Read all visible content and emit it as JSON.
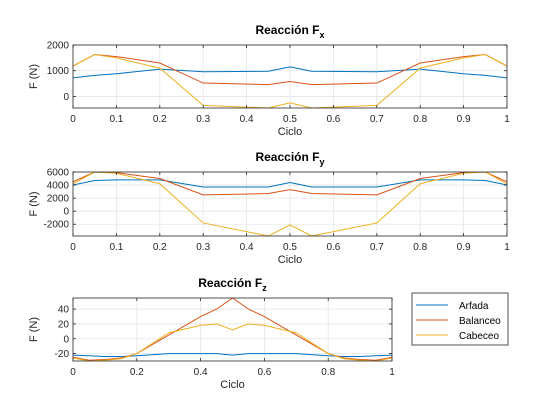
{
  "legend": {
    "entries": [
      "Arfada",
      "Balanceo",
      "Cabeceo"
    ]
  },
  "chart_data": [
    {
      "type": "line",
      "title": "Reacción F",
      "title_subscript": "x",
      "xlabel": "Ciclo",
      "ylabel": "F (N)",
      "xlim": [
        0,
        1
      ],
      "ylim": [
        -450,
        2000
      ],
      "xticks": [
        0,
        0.1,
        0.2,
        0.3,
        0.4,
        0.5,
        0.6,
        0.7,
        0.8,
        0.9,
        1
      ],
      "yticks": [
        0,
        1000,
        2000
      ],
      "ytick_labels": [
        "0",
        "1000",
        "2000"
      ],
      "grid": true,
      "x": [
        0,
        0.05,
        0.1,
        0.2,
        0.3,
        0.45,
        0.5,
        0.55,
        0.7,
        0.8,
        0.9,
        0.95,
        1
      ],
      "series": [
        {
          "name": "Arfada",
          "color": "#0072BD",
          "values": [
            720,
            820,
            880,
            1060,
            960,
            980,
            1150,
            980,
            960,
            1060,
            880,
            820,
            720
          ]
        },
        {
          "name": "Balanceo",
          "color": "#D95319",
          "values": [
            1180,
            1630,
            1550,
            1300,
            520,
            460,
            580,
            460,
            520,
            1300,
            1550,
            1630,
            1180
          ]
        },
        {
          "name": "Cabeceo",
          "color": "#EDB120",
          "values": [
            1180,
            1630,
            1500,
            1100,
            -350,
            -450,
            -250,
            -450,
            -350,
            1100,
            1500,
            1630,
            1180
          ]
        }
      ]
    },
    {
      "type": "line",
      "title": "Reacción F",
      "title_subscript": "y",
      "xlabel": "Ciclo",
      "ylabel": "F (N)",
      "xlim": [
        0,
        1
      ],
      "ylim": [
        -3800,
        6000
      ],
      "xticks": [
        0,
        0.1,
        0.2,
        0.3,
        0.4,
        0.5,
        0.6,
        0.7,
        0.8,
        0.9,
        1
      ],
      "yticks": [
        -2000,
        0,
        2000,
        4000,
        6000
      ],
      "ytick_labels": [
        "-2000",
        "0",
        "2000",
        "4000",
        "6000"
      ],
      "grid": true,
      "x": [
        0,
        0.05,
        0.1,
        0.2,
        0.3,
        0.45,
        0.5,
        0.55,
        0.7,
        0.8,
        0.9,
        0.95,
        1
      ],
      "series": [
        {
          "name": "Arfada",
          "color": "#0072BD",
          "values": [
            4000,
            4700,
            4800,
            4800,
            3700,
            3700,
            4400,
            3700,
            3700,
            4800,
            4800,
            4700,
            4000
          ]
        },
        {
          "name": "Balanceo",
          "color": "#D95319",
          "values": [
            4500,
            6000,
            5900,
            5000,
            2500,
            2700,
            3300,
            2700,
            2500,
            5000,
            5900,
            6000,
            4500
          ]
        },
        {
          "name": "Cabeceo",
          "color": "#EDB120",
          "values": [
            4200,
            6000,
            5800,
            4200,
            -1800,
            -3800,
            -2100,
            -3800,
            -1800,
            4200,
            5800,
            6000,
            4200
          ]
        }
      ]
    },
    {
      "type": "line",
      "title": "Reacción F",
      "title_subscript": "z",
      "xlabel": "Ciclo",
      "ylabel": "F (N)",
      "xlim": [
        0,
        1
      ],
      "ylim": [
        -30,
        55
      ],
      "xticks": [
        0,
        0.2,
        0.4,
        0.6,
        0.8,
        1
      ],
      "yticks": [
        -20,
        0,
        20,
        40
      ],
      "ytick_labels": [
        "-20",
        "0",
        "20",
        "40"
      ],
      "grid": true,
      "x": [
        0,
        0.05,
        0.1,
        0.15,
        0.2,
        0.3,
        0.4,
        0.45,
        0.5,
        0.55,
        0.6,
        0.7,
        0.8,
        0.85,
        0.9,
        0.95,
        1
      ],
      "series": [
        {
          "name": "Arfada",
          "color": "#0072BD",
          "values": [
            -22,
            -23,
            -24,
            -24,
            -23,
            -20,
            -20,
            -20,
            -22,
            -20,
            -20,
            -20,
            -23,
            -24,
            -24,
            -23,
            -22
          ]
        },
        {
          "name": "Balanceo",
          "color": "#D95319",
          "values": [
            -25,
            -29,
            -28,
            -26,
            -20,
            5,
            30,
            40,
            55,
            40,
            30,
            5,
            -20,
            -26,
            -28,
            -29,
            -25
          ]
        },
        {
          "name": "Cabeceo",
          "color": "#EDB120",
          "values": [
            -26,
            -30,
            -29,
            -27,
            -20,
            8,
            18,
            20,
            12,
            20,
            18,
            8,
            -20,
            -27,
            -29,
            -30,
            -26
          ]
        }
      ]
    }
  ]
}
